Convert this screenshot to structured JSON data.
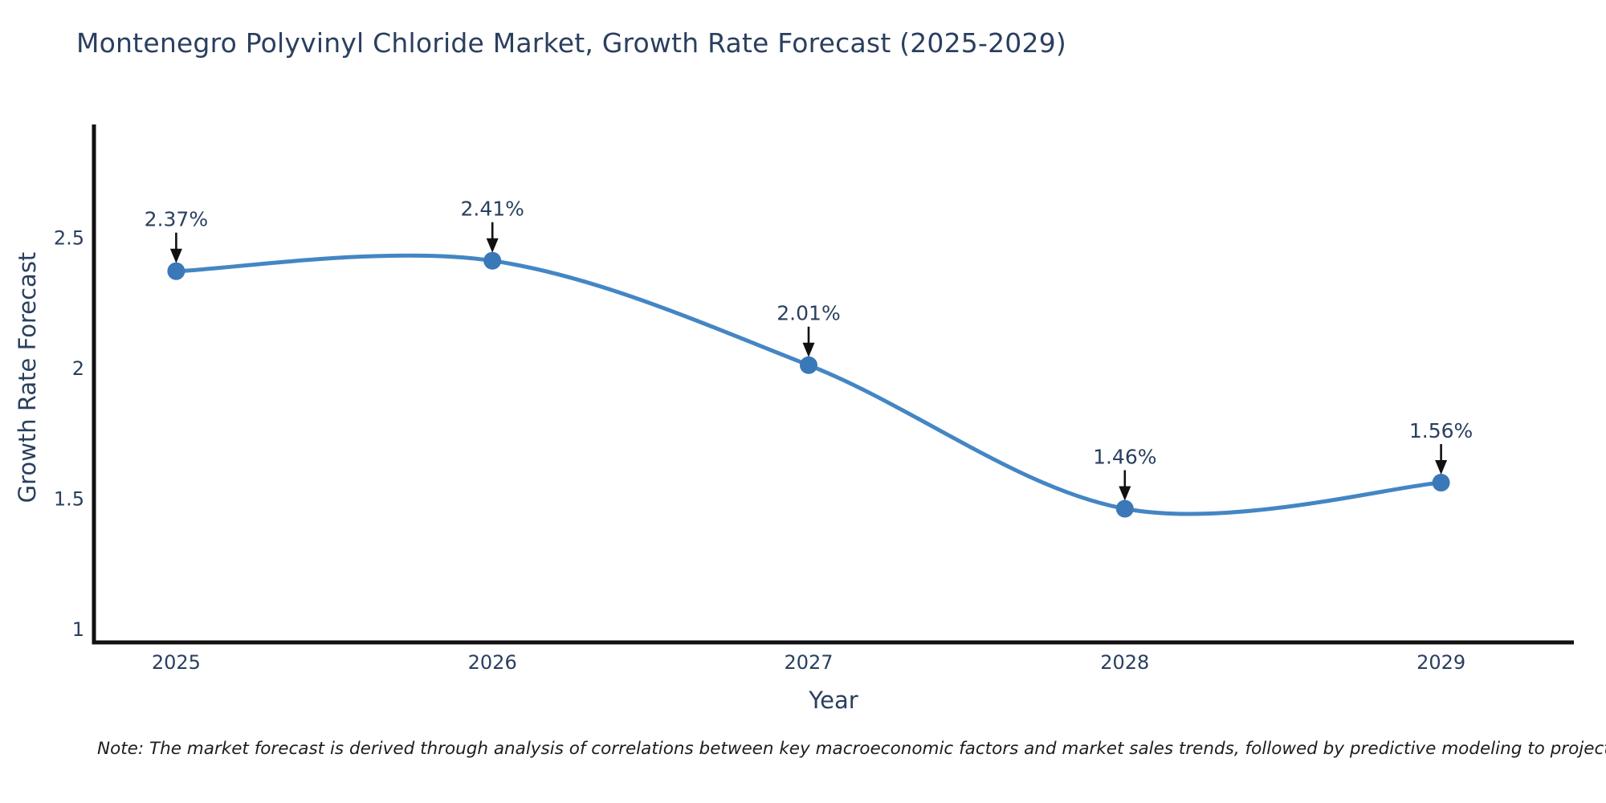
{
  "title": "Montenegro Polyvinyl Chloride Market, Growth Rate Forecast (2025-2029)",
  "note": "Note: The market forecast is derived through analysis of correlations between key macroeconomic factors and market sales trends, followed by predictive modeling to project future sales",
  "chart_data": {
    "type": "line",
    "line_shape": "spline",
    "title": "Montenegro Polyvinyl Chloride Market, Growth Rate Forecast (2025-2029)",
    "xlabel": "Year",
    "ylabel": "Growth Rate Forecast",
    "categories": [
      2025,
      2026,
      2027,
      2028,
      2029
    ],
    "values": [
      2.37,
      2.41,
      2.01,
      1.46,
      1.56
    ],
    "point_labels": [
      "2.37%",
      "2.41%",
      "2.01%",
      "1.46%",
      "1.56%"
    ],
    "xticks": [
      "2025",
      "2026",
      "2027",
      "2028",
      "2029"
    ],
    "yticks": [
      1,
      1.5,
      2,
      2.5
    ],
    "ylim": [
      0.948,
      2.932
    ],
    "xlim": [
      2024.74,
      2029.42
    ],
    "grid": false,
    "legend": "none",
    "annotations_have_arrows": true,
    "colors": {
      "line": "#4486c4",
      "marker": "#3a78b8",
      "arrow": "#111111",
      "axis": "#111111",
      "text": "#2a3f5f",
      "note_text": "#1d1d1d",
      "background": "#ffffff"
    }
  }
}
